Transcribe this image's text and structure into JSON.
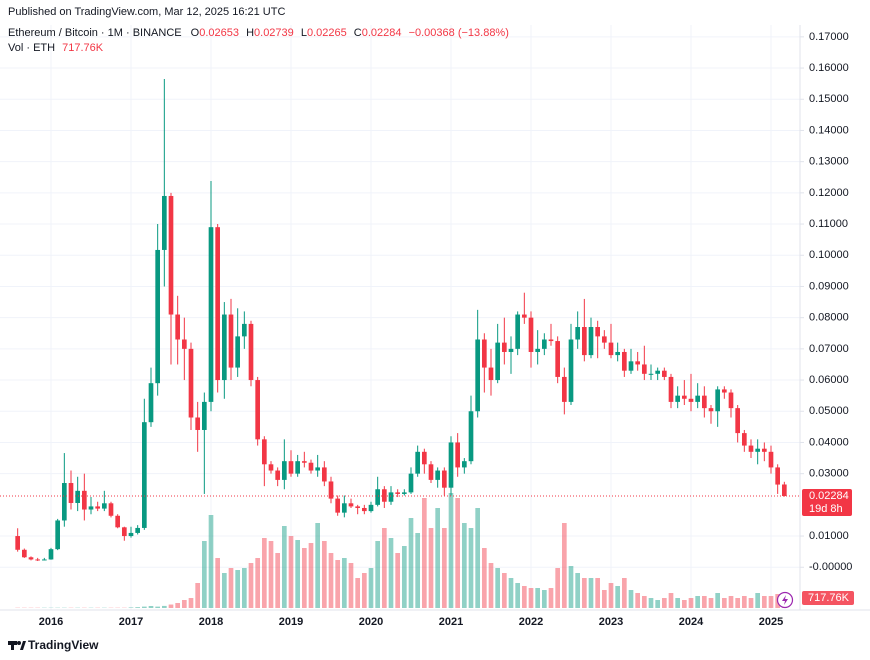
{
  "chart_data": {
    "type": "candlestick",
    "published": "Published on TradingView.com, Mar 12, 2025 16:21 UTC",
    "title": "Ethereum / Bitcoin · 1M · BINANCE",
    "ohlc_keys": [
      "O",
      "H",
      "L",
      "C"
    ],
    "change": "−0.00368 (−13.88%)",
    "volume_title": "Vol · ETH",
    "countdown": "19d 8h",
    "brand": "TradingView",
    "up_color": "#089981",
    "down_color": "#f23645",
    "grid": true,
    "categories": [
      null,
      null,
      null,
      null,
      null,
      "2016",
      null,
      null,
      null,
      null,
      null,
      null,
      null,
      null,
      null,
      null,
      null,
      "2017",
      null,
      null,
      null,
      null,
      null,
      null,
      null,
      null,
      null,
      null,
      null,
      "2018",
      null,
      null,
      null,
      null,
      null,
      null,
      null,
      null,
      null,
      null,
      null,
      "2019",
      null,
      null,
      null,
      null,
      null,
      null,
      null,
      null,
      null,
      null,
      null,
      "2020",
      null,
      null,
      null,
      null,
      null,
      null,
      null,
      null,
      null,
      null,
      null,
      "2021",
      null,
      null,
      null,
      null,
      null,
      null,
      null,
      null,
      null,
      null,
      null,
      "2022",
      null,
      null,
      null,
      null,
      null,
      null,
      null,
      null,
      null,
      null,
      null,
      "2023",
      null,
      null,
      null,
      null,
      null,
      null,
      null,
      null,
      null,
      null,
      null,
      "2024",
      null,
      null,
      null,
      null,
      null,
      null,
      null,
      null,
      null,
      null,
      null,
      "2025",
      null,
      null
    ],
    "open": [
      0.01,
      0.0056,
      0.0032,
      0.0025,
      0.0024,
      0.0025,
      0.0058,
      0.015,
      0.027,
      0.0206,
      0.0245,
      0.0185,
      0.0195,
      0.0188,
      0.0205,
      0.0165,
      0.0128,
      0.01,
      0.011,
      0.0126,
      0.0465,
      0.059,
      0.1017,
      0.119,
      0.081,
      0.073,
      0.07,
      0.048,
      0.044,
      0.053,
      0.109,
      0.06,
      0.081,
      0.064,
      0.074,
      0.078,
      0.06,
      0.041,
      0.033,
      0.031,
      0.028,
      0.034,
      0.03,
      0.034,
      0.0335,
      0.031,
      0.032,
      0.0275,
      0.022,
      0.0175,
      0.0205,
      0.0195,
      0.019,
      0.018,
      0.02,
      0.025,
      0.021,
      0.024,
      0.0235,
      0.024,
      0.03,
      0.037,
      0.033,
      0.028,
      0.031,
      0.0255,
      0.04,
      0.032,
      0.034,
      0.05,
      0.073,
      0.064,
      0.06,
      0.072,
      0.069,
      0.07,
      0.081,
      0.08,
      0.069,
      0.07,
      0.073,
      0.0725,
      0.061,
      0.053,
      0.073,
      0.077,
      0.068,
      0.077,
      0.074,
      0.072,
      0.068,
      0.069,
      0.063,
      0.066,
      0.065,
      0.062,
      0.062,
      0.063,
      0.061,
      0.053,
      0.055,
      0.054,
      0.053,
      0.055,
      0.051,
      0.05,
      0.057,
      0.056,
      0.051,
      0.043,
      0.039,
      0.037,
      0.038,
      0.037,
      0.032,
      0.02653
    ],
    "high": [
      0.0125,
      0.006,
      0.0035,
      0.003,
      0.003,
      0.0062,
      0.0155,
      0.0366,
      0.031,
      0.029,
      0.03,
      0.0225,
      0.021,
      0.0245,
      0.021,
      0.017,
      0.013,
      0.013,
      0.0135,
      0.054,
      0.064,
      0.11,
      0.1565,
      0.12,
      0.087,
      0.08,
      0.072,
      0.053,
      0.056,
      0.1238,
      0.11,
      0.085,
      0.086,
      0.083,
      0.082,
      0.079,
      0.061,
      0.042,
      0.034,
      0.032,
      0.041,
      0.0375,
      0.036,
      0.037,
      0.0345,
      0.036,
      0.034,
      0.029,
      0.023,
      0.023,
      0.022,
      0.02,
      0.02,
      0.021,
      0.029,
      0.026,
      0.026,
      0.025,
      0.025,
      0.032,
      0.039,
      0.038,
      0.034,
      0.032,
      0.032,
      0.042,
      0.043,
      0.035,
      0.055,
      0.0825,
      0.075,
      0.07,
      0.078,
      0.08,
      0.074,
      0.082,
      0.088,
      0.082,
      0.076,
      0.075,
      0.078,
      0.074,
      0.064,
      0.078,
      0.082,
      0.086,
      0.08,
      0.079,
      0.076,
      0.078,
      0.072,
      0.07,
      0.07,
      0.069,
      0.071,
      0.065,
      0.064,
      0.064,
      0.062,
      0.058,
      0.06,
      0.062,
      0.059,
      0.058,
      0.052,
      0.058,
      0.058,
      0.057,
      0.052,
      0.044,
      0.041,
      0.041,
      0.04,
      0.039,
      0.033,
      0.02739
    ],
    "low": [
      0.005,
      0.003,
      0.0022,
      0.002,
      0.0022,
      0.0024,
      0.0055,
      0.013,
      0.0185,
      0.018,
      0.015,
      0.017,
      0.018,
      0.018,
      0.016,
      0.0125,
      0.0085,
      0.0095,
      0.0105,
      0.012,
      0.045,
      0.055,
      0.09,
      0.065,
      0.065,
      0.06,
      0.044,
      0.037,
      0.0235,
      0.05,
      0.056,
      0.054,
      0.06,
      0.061,
      0.07,
      0.058,
      0.039,
      0.026,
      0.03,
      0.026,
      0.025,
      0.029,
      0.029,
      0.032,
      0.03,
      0.029,
      0.026,
      0.0205,
      0.0165,
      0.016,
      0.019,
      0.017,
      0.017,
      0.0175,
      0.0195,
      0.019,
      0.02,
      0.0225,
      0.023,
      0.0235,
      0.029,
      0.03,
      0.027,
      0.0255,
      0.023,
      0.023,
      0.029,
      0.03,
      0.033,
      0.048,
      0.056,
      0.055,
      0.059,
      0.065,
      0.062,
      0.068,
      0.078,
      0.064,
      0.065,
      0.068,
      0.071,
      0.059,
      0.049,
      0.052,
      0.07,
      0.066,
      0.067,
      0.067,
      0.07,
      0.067,
      0.066,
      0.061,
      0.062,
      0.063,
      0.06,
      0.06,
      0.06,
      0.06,
      0.051,
      0.051,
      0.052,
      0.05,
      0.051,
      0.048,
      0.046,
      0.045,
      0.054,
      0.048,
      0.04,
      0.037,
      0.035,
      0.033,
      0.034,
      0.03,
      0.0235,
      0.02265
    ],
    "close": [
      0.0056,
      0.0032,
      0.0025,
      0.0024,
      0.0025,
      0.0058,
      0.015,
      0.027,
      0.0206,
      0.0245,
      0.0185,
      0.0195,
      0.0188,
      0.0205,
      0.0165,
      0.0128,
      0.01,
      0.011,
      0.0126,
      0.0465,
      0.059,
      0.1017,
      0.119,
      0.081,
      0.073,
      0.07,
      0.048,
      0.044,
      0.053,
      0.109,
      0.06,
      0.081,
      0.064,
      0.074,
      0.078,
      0.06,
      0.041,
      0.033,
      0.031,
      0.028,
      0.034,
      0.03,
      0.034,
      0.0335,
      0.031,
      0.032,
      0.0275,
      0.022,
      0.0175,
      0.0205,
      0.0195,
      0.019,
      0.018,
      0.02,
      0.025,
      0.021,
      0.024,
      0.0235,
      0.024,
      0.03,
      0.037,
      0.033,
      0.028,
      0.031,
      0.0255,
      0.04,
      0.032,
      0.034,
      0.05,
      0.073,
      0.064,
      0.06,
      0.072,
      0.069,
      0.07,
      0.081,
      0.08,
      0.069,
      0.07,
      0.073,
      0.0725,
      0.061,
      0.053,
      0.073,
      0.077,
      0.068,
      0.077,
      0.074,
      0.072,
      0.068,
      0.069,
      0.063,
      0.066,
      0.065,
      0.062,
      0.062,
      0.063,
      0.061,
      0.053,
      0.055,
      0.054,
      0.053,
      0.055,
      0.051,
      0.05,
      0.057,
      0.056,
      0.051,
      0.043,
      0.039,
      0.037,
      0.038,
      0.037,
      0.032,
      0.0265,
      0.02284
    ],
    "volume": {
      "values": [
        20000,
        20000,
        20000,
        20000,
        20000,
        20000,
        20000,
        20000,
        20000,
        20000,
        20000,
        20000,
        20000,
        20000,
        20000,
        20000,
        20000,
        40000,
        60000,
        100000,
        144000,
        100000,
        150000,
        250000,
        360000,
        576000,
        720000,
        1800000,
        4824000,
        6696000,
        3600000,
        2520000,
        2880000,
        2736000,
        2880000,
        3240000,
        3600000,
        5040000,
        4824000,
        3960000,
        5904000,
        5184000,
        4896000,
        4320000,
        4680000,
        6120000,
        4824000,
        3960000,
        3456000,
        3600000,
        3240000,
        2160000,
        2520000,
        2880000,
        4824000,
        5760000,
        5040000,
        3960000,
        4464000,
        6480000,
        5400000,
        7920000,
        5760000,
        7200000,
        5760000,
        8280000,
        7920000,
        6120000,
        5760000,
        7200000,
        4320000,
        3240000,
        2880000,
        2520000,
        2160000,
        1800000,
        1584000,
        1440000,
        1440000,
        1296000,
        1440000,
        2880000,
        6120000,
        3024000,
        2520000,
        2160000,
        2160000,
        2160000,
        1296000,
        1800000,
        1584000,
        2160000,
        1296000,
        1080000,
        864000,
        720000,
        576000,
        720000,
        1080000,
        720000,
        576000,
        720000,
        864000,
        864000,
        720000,
        1080000,
        720000,
        864000,
        720000,
        864000,
        720000,
        1080000,
        864000,
        864000,
        1008000,
        717760
      ],
      "last_label": "717.76K",
      "vlim": [
        0,
        9000000
      ]
    },
    "ylim": [
      -0.0137,
      0.1738
    ],
    "yticks": [
      {
        "value": 0.17,
        "label": "0.17000"
      },
      {
        "value": 0.16,
        "label": "0.16000"
      },
      {
        "value": 0.15,
        "label": "0.15000"
      },
      {
        "value": 0.14,
        "label": "0.14000"
      },
      {
        "value": 0.13,
        "label": "0.13000"
      },
      {
        "value": 0.12,
        "label": "0.12000"
      },
      {
        "value": 0.11,
        "label": "0.11000"
      },
      {
        "value": 0.1,
        "label": "0.10000"
      },
      {
        "value": 0.09,
        "label": "0.09000"
      },
      {
        "value": 0.08,
        "label": "0.08000"
      },
      {
        "value": 0.07,
        "label": "0.07000"
      },
      {
        "value": 0.06,
        "label": "0.06000"
      },
      {
        "value": 0.05,
        "label": "0.05000"
      },
      {
        "value": 0.04,
        "label": "0.04000"
      },
      {
        "value": 0.03,
        "label": "0.03000"
      },
      {
        "value": 0.01,
        "label": "0.01000"
      },
      {
        "value": 0,
        "label": "-0.00000"
      }
    ]
  }
}
